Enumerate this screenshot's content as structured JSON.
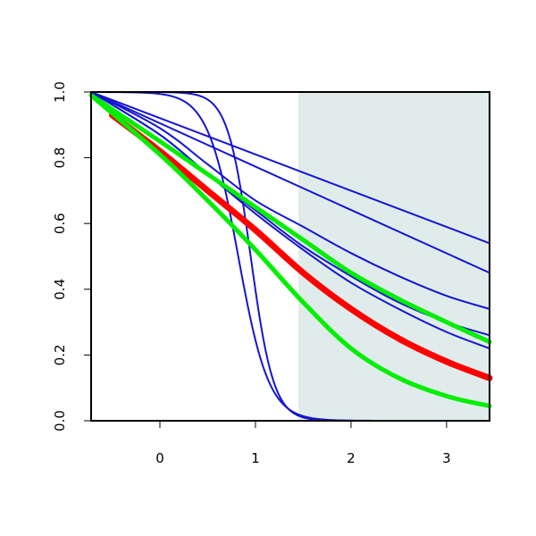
{
  "chart_data": {
    "type": "line",
    "title": "",
    "xlabel": "",
    "ylabel": "",
    "xlim": [
      -0.72,
      3.45
    ],
    "ylim": [
      0,
      1
    ],
    "x_ticks": [
      0,
      1,
      2,
      3
    ],
    "y_ticks": [
      0.0,
      0.2,
      0.4,
      0.6,
      0.8,
      1.0
    ],
    "x_tick_labels": [
      "0",
      "1",
      "2",
      "3"
    ],
    "y_tick_labels": [
      "0.0",
      "0.2",
      "0.4",
      "0.6",
      "0.8",
      "1.0"
    ],
    "shaded_region": {
      "x_from": 1.45,
      "x_to": 3.45,
      "color": "#e0ecec"
    },
    "grid": false,
    "legend": "none",
    "colors": {
      "blue": "#1515d0",
      "red": "#ff0000",
      "green": "#00ee00"
    },
    "series": [
      {
        "color": "blue",
        "kind": "linear",
        "width": 2,
        "points": [
          [
            -0.72,
            1.0
          ],
          [
            3.45,
            0.54
          ]
        ]
      },
      {
        "color": "blue",
        "kind": "linear",
        "width": 2,
        "points": [
          [
            -0.72,
            1.0
          ],
          [
            3.45,
            0.45
          ]
        ]
      },
      {
        "color": "blue",
        "kind": "curve",
        "width": 2,
        "points": [
          [
            -0.72,
            1.0
          ],
          [
            0.0,
            0.89
          ],
          [
            0.5,
            0.78
          ],
          [
            1.0,
            0.67
          ],
          [
            1.5,
            0.59
          ],
          [
            2.0,
            0.51
          ],
          [
            2.5,
            0.44
          ],
          [
            3.0,
            0.38
          ],
          [
            3.45,
            0.34
          ]
        ]
      },
      {
        "color": "blue",
        "kind": "curve",
        "width": 2,
        "points": [
          [
            -0.72,
            1.0
          ],
          [
            0.0,
            0.87
          ],
          [
            0.5,
            0.75
          ],
          [
            1.0,
            0.64
          ],
          [
            1.5,
            0.53
          ],
          [
            2.0,
            0.44
          ],
          [
            2.5,
            0.36
          ],
          [
            3.0,
            0.3
          ],
          [
            3.45,
            0.26
          ]
        ]
      },
      {
        "color": "blue",
        "kind": "curve",
        "width": 2,
        "points": [
          [
            -0.72,
            1.0
          ],
          [
            0.0,
            0.87
          ],
          [
            0.5,
            0.75
          ],
          [
            1.0,
            0.63
          ],
          [
            1.5,
            0.52
          ],
          [
            2.0,
            0.42
          ],
          [
            2.5,
            0.34
          ],
          [
            3.0,
            0.27
          ],
          [
            3.45,
            0.22
          ]
        ]
      },
      {
        "color": "blue",
        "kind": "sigmoid",
        "width": 2,
        "upper": 1.0,
        "lower": 0.0,
        "mid": 0.95,
        "scale": 0.12
      },
      {
        "color": "blue",
        "kind": "sigmoid",
        "width": 2,
        "upper": 1.0,
        "lower": 0.0,
        "mid": 0.82,
        "scale": 0.16
      },
      {
        "color": "red",
        "kind": "curve",
        "width": 7,
        "points": [
          [
            -0.5,
            0.93
          ],
          [
            0.0,
            0.82
          ],
          [
            0.5,
            0.7
          ],
          [
            1.0,
            0.58
          ],
          [
            1.5,
            0.45
          ],
          [
            2.0,
            0.34
          ],
          [
            2.5,
            0.25
          ],
          [
            3.0,
            0.18
          ],
          [
            3.45,
            0.13
          ]
        ]
      },
      {
        "color": "green",
        "kind": "curve",
        "width": 5,
        "points": [
          [
            -0.72,
            0.99
          ],
          [
            0.0,
            0.85
          ],
          [
            0.5,
            0.75
          ],
          [
            1.0,
            0.65
          ],
          [
            1.5,
            0.55
          ],
          [
            2.0,
            0.45
          ],
          [
            2.5,
            0.37
          ],
          [
            3.0,
            0.3
          ],
          [
            3.45,
            0.24
          ]
        ]
      },
      {
        "color": "green",
        "kind": "curve",
        "width": 5,
        "points": [
          [
            -0.72,
            0.99
          ],
          [
            0.0,
            0.81
          ],
          [
            0.5,
            0.67
          ],
          [
            1.0,
            0.52
          ],
          [
            1.5,
            0.36
          ],
          [
            2.0,
            0.22
          ],
          [
            2.5,
            0.13
          ],
          [
            3.0,
            0.075
          ],
          [
            3.45,
            0.045
          ]
        ]
      }
    ]
  }
}
